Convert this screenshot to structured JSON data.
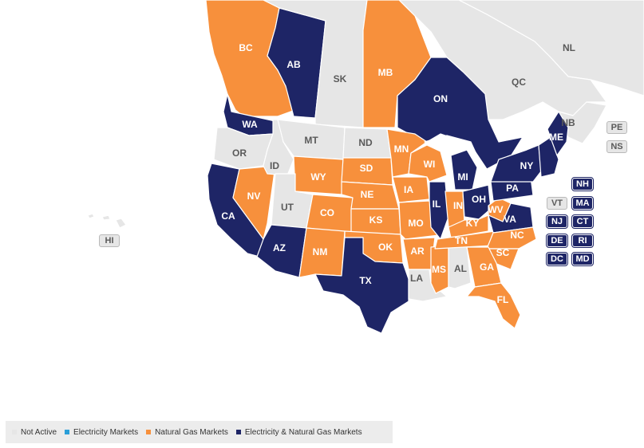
{
  "colors": {
    "not_active": "#e6e6e6",
    "electricity": "#2a9fd8",
    "gas": "#f7903c",
    "both": "#1e2566",
    "label_light": "#ffffff",
    "label_dark": "#5a5a5a",
    "water": "#ffffff"
  },
  "legend": [
    {
      "label": "Not Active",
      "status": "not_active"
    },
    {
      "label": "Electricity Markets",
      "status": "electricity"
    },
    {
      "label": "Natural Gas Markets",
      "status": "gas"
    },
    {
      "label": "Electricity & Natural Gas Markets",
      "status": "both"
    }
  ],
  "regions": [
    {
      "code": "NL",
      "status": "not_active"
    },
    {
      "code": "QC",
      "status": "not_active"
    },
    {
      "code": "BC",
      "status": "gas"
    },
    {
      "code": "AB",
      "status": "both"
    },
    {
      "code": "SK",
      "status": "not_active"
    },
    {
      "code": "MB",
      "status": "gas"
    },
    {
      "code": "ON",
      "status": "both"
    },
    {
      "code": "WA",
      "status": "both"
    },
    {
      "code": "OR",
      "status": "not_active"
    },
    {
      "code": "CA",
      "status": "both"
    },
    {
      "code": "NV",
      "status": "gas"
    },
    {
      "code": "ID",
      "status": "not_active"
    },
    {
      "code": "MT",
      "status": "not_active"
    },
    {
      "code": "WY",
      "status": "gas"
    },
    {
      "code": "UT",
      "status": "not_active"
    },
    {
      "code": "AZ",
      "status": "both"
    },
    {
      "code": "CO",
      "status": "gas"
    },
    {
      "code": "NM",
      "status": "gas"
    },
    {
      "code": "ND",
      "status": "not_active"
    },
    {
      "code": "SD",
      "status": "gas"
    },
    {
      "code": "NE",
      "status": "gas"
    },
    {
      "code": "KS",
      "status": "gas"
    },
    {
      "code": "OK",
      "status": "gas"
    },
    {
      "code": "TX",
      "status": "both"
    },
    {
      "code": "MN",
      "status": "gas"
    },
    {
      "code": "IA",
      "status": "gas"
    },
    {
      "code": "MO",
      "status": "gas"
    },
    {
      "code": "AR",
      "status": "gas"
    },
    {
      "code": "LA",
      "status": "not_active"
    },
    {
      "code": "WI",
      "status": "gas"
    },
    {
      "code": "IL",
      "status": "both"
    },
    {
      "code": "MS",
      "status": "gas"
    },
    {
      "code": "MI",
      "status": "both"
    },
    {
      "code": "IN",
      "status": "gas"
    },
    {
      "code": "KY",
      "status": "gas"
    },
    {
      "code": "TN",
      "status": "gas"
    },
    {
      "code": "AL",
      "status": "not_active"
    },
    {
      "code": "OH",
      "status": "both"
    },
    {
      "code": "WV",
      "status": "gas"
    },
    {
      "code": "VA",
      "status": "both"
    },
    {
      "code": "NC",
      "status": "gas"
    },
    {
      "code": "SC",
      "status": "gas"
    },
    {
      "code": "GA",
      "status": "gas"
    },
    {
      "code": "FL",
      "status": "gas"
    },
    {
      "code": "PA",
      "status": "both"
    },
    {
      "code": "NY",
      "status": "both"
    },
    {
      "code": "ME",
      "status": "both"
    },
    {
      "code": "NB",
      "status": "not_active"
    },
    {
      "code": "NE_US",
      "status": "both"
    },
    {
      "code": "HI",
      "status": "not_active"
    }
  ],
  "labels": [
    {
      "code": "NL",
      "text": "NL"
    },
    {
      "code": "QC",
      "text": "QC"
    },
    {
      "code": "BC",
      "text": "BC"
    },
    {
      "code": "AB",
      "text": "AB"
    },
    {
      "code": "SK",
      "text": "SK"
    },
    {
      "code": "MB",
      "text": "MB"
    },
    {
      "code": "ON",
      "text": "ON"
    },
    {
      "code": "NB",
      "text": "NB"
    },
    {
      "code": "WA",
      "text": "WA"
    },
    {
      "code": "OR",
      "text": "OR"
    },
    {
      "code": "CA",
      "text": "CA"
    },
    {
      "code": "NV",
      "text": "NV"
    },
    {
      "code": "ID",
      "text": "ID"
    },
    {
      "code": "MT",
      "text": "MT"
    },
    {
      "code": "WY",
      "text": "WY"
    },
    {
      "code": "UT",
      "text": "UT"
    },
    {
      "code": "AZ",
      "text": "AZ"
    },
    {
      "code": "CO",
      "text": "CO"
    },
    {
      "code": "NM",
      "text": "NM"
    },
    {
      "code": "ND",
      "text": "ND"
    },
    {
      "code": "SD",
      "text": "SD"
    },
    {
      "code": "NE",
      "text": "NE"
    },
    {
      "code": "KS",
      "text": "KS"
    },
    {
      "code": "OK",
      "text": "OK"
    },
    {
      "code": "TX",
      "text": "TX"
    },
    {
      "code": "MN",
      "text": "MN"
    },
    {
      "code": "IA",
      "text": "IA"
    },
    {
      "code": "MO",
      "text": "MO"
    },
    {
      "code": "AR",
      "text": "AR"
    },
    {
      "code": "LA",
      "text": "LA"
    },
    {
      "code": "WI",
      "text": "WI"
    },
    {
      "code": "IL",
      "text": "IL"
    },
    {
      "code": "MS",
      "text": "MS"
    },
    {
      "code": "MI",
      "text": "MI"
    },
    {
      "code": "IN",
      "text": "IN"
    },
    {
      "code": "KY",
      "text": "KY"
    },
    {
      "code": "TN",
      "text": "TN"
    },
    {
      "code": "AL",
      "text": "AL"
    },
    {
      "code": "OH",
      "text": "OH"
    },
    {
      "code": "WV",
      "text": "WV"
    },
    {
      "code": "VA",
      "text": "VA"
    },
    {
      "code": "NC",
      "text": "NC"
    },
    {
      "code": "SC",
      "text": "SC"
    },
    {
      "code": "GA",
      "text": "GA"
    },
    {
      "code": "FL",
      "text": "FL"
    },
    {
      "code": "PA",
      "text": "PA"
    },
    {
      "code": "NY",
      "text": "NY"
    },
    {
      "code": "ME",
      "text": "ME"
    }
  ],
  "boxes": [
    {
      "code": "PE",
      "text": "PE",
      "status": "not_active"
    },
    {
      "code": "NS",
      "text": "NS",
      "status": "not_active"
    },
    {
      "code": "NH",
      "text": "NH",
      "status": "both"
    },
    {
      "code": "VT",
      "text": "VT",
      "status": "not_active"
    },
    {
      "code": "MA",
      "text": "MA",
      "status": "both"
    },
    {
      "code": "NJ",
      "text": "NJ",
      "status": "both"
    },
    {
      "code": "CT",
      "text": "CT",
      "status": "both"
    },
    {
      "code": "DE",
      "text": "DE",
      "status": "both"
    },
    {
      "code": "RI",
      "text": "RI",
      "status": "both"
    },
    {
      "code": "DC",
      "text": "DC",
      "status": "both"
    },
    {
      "code": "MD",
      "text": "MD",
      "status": "both"
    },
    {
      "code": "HI",
      "text": "HI",
      "status": "not_active"
    }
  ]
}
